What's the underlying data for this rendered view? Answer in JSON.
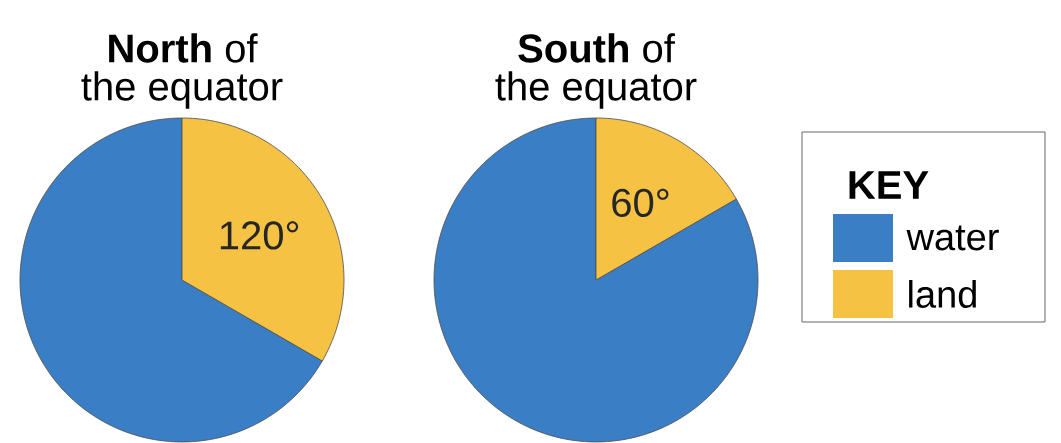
{
  "chart_data": [
    {
      "type": "pie",
      "title": "**North** of",
      "subtitle": "the equator",
      "categories": [
        null,
        null
      ],
      "values": [
        240,
        120
      ],
      "colors": [
        "#3a7ec6",
        "#f5c244"
      ],
      "value_labels": [
        null,
        "120°"
      ]
    },
    {
      "type": "pie",
      "title": "**South** of",
      "subtitle": "the equator",
      "categories": [
        "water",
        "land"
      ],
      "values": [
        300,
        60
      ],
      "colors": [
        "#3a7ec6",
        "#f5c244"
      ],
      "value_labels": [
        null,
        "60°"
      ],
      "legend": "right",
      "legend_title": "KEY"
    }
  ]
}
